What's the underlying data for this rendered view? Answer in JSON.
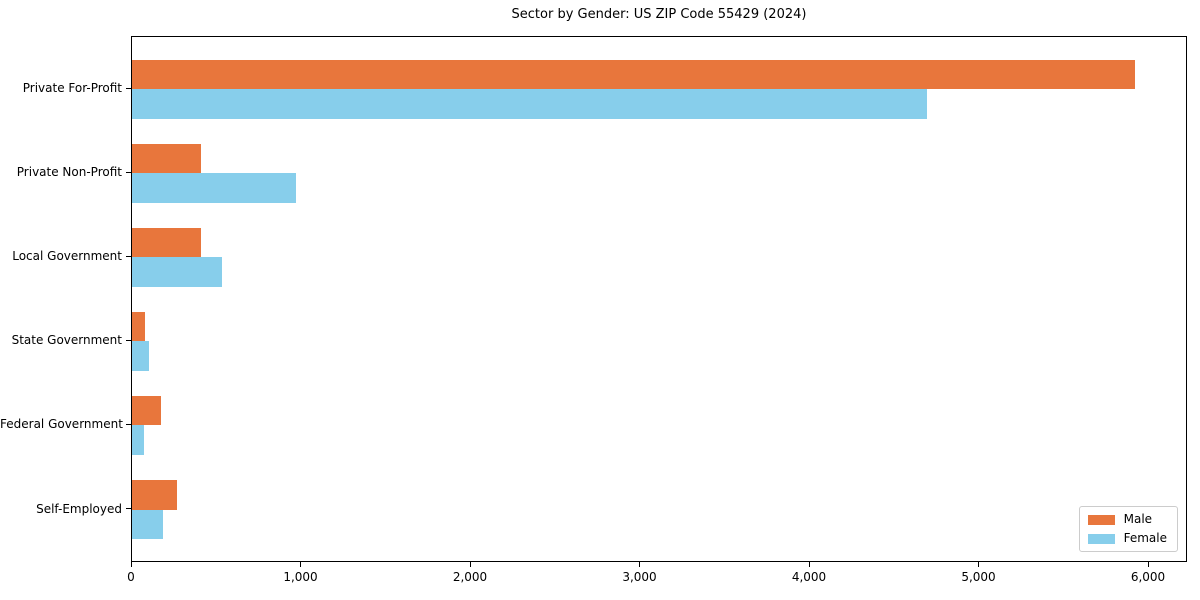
{
  "chart_data": {
    "type": "bar",
    "orientation": "horizontal",
    "title": "Sector by Gender: US ZIP Code 55429 (2024)",
    "categories": [
      "Private For-Profit",
      "Private Non-Profit",
      "Local Government",
      "State Government",
      "Federal Government",
      "Self-Employed"
    ],
    "series": [
      {
        "name": "Male",
        "color": "#e8763c",
        "values": [
          5920,
          410,
          410,
          75,
          170,
          265
        ]
      },
      {
        "name": "Female",
        "color": "#87ceeb",
        "values": [
          4690,
          965,
          530,
          100,
          70,
          185
        ]
      }
    ],
    "xlabel": "",
    "ylabel": "",
    "xlim": [
      0,
      6230
    ],
    "xticks": [
      0,
      1000,
      2000,
      3000,
      4000,
      5000,
      6000
    ],
    "xtick_labels": [
      "0",
      "1,000",
      "2,000",
      "3,000",
      "4,000",
      "5,000",
      "6,000"
    ],
    "grid": false,
    "legend_position": "lower right",
    "colors": {
      "male": "#e8763c",
      "female": "#87ceeb",
      "axis": "#000000",
      "background": "#ffffff",
      "legend_border": "#cccccc"
    }
  }
}
